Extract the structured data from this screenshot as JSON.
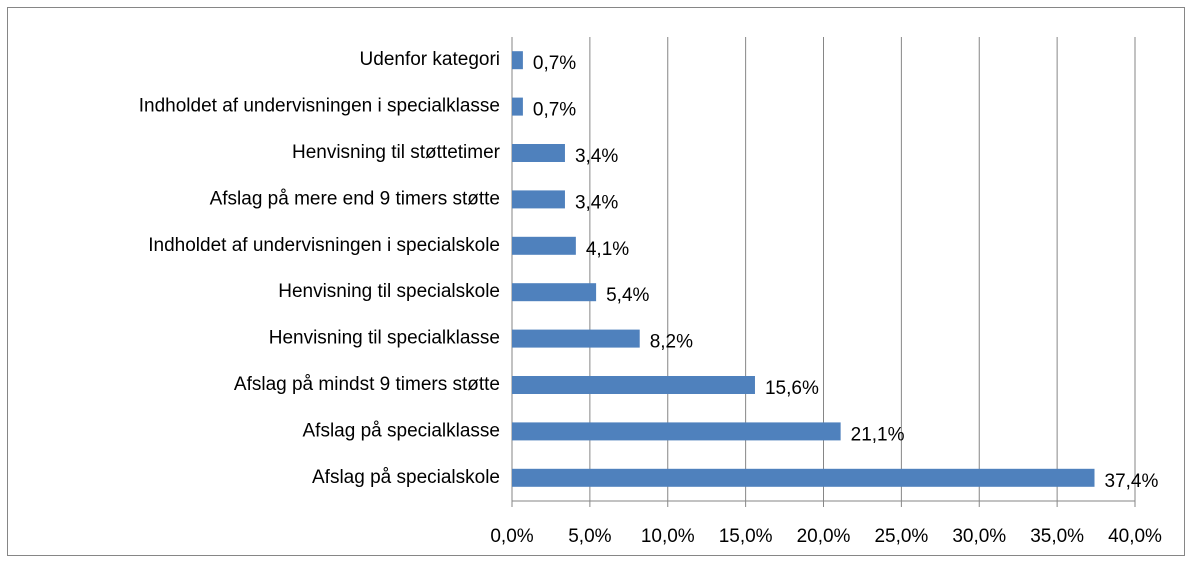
{
  "chart_data": {
    "type": "bar",
    "orientation": "horizontal",
    "categories": [
      "Afslag på specialskole",
      "Afslag på specialklasse",
      "Afslag på mindst 9 timers støtte",
      "Henvisning til specialklasse",
      "Henvisning til specialskole",
      "Indholdet af undervisningen i specialskole",
      "Afslag på mere end 9 timers støtte",
      "Henvisning til støttetimer",
      "Indholdet af undervisningen i specialklasse",
      "Udenfor kategori"
    ],
    "values": [
      37.4,
      21.1,
      15.6,
      8.2,
      5.4,
      4.1,
      3.4,
      3.4,
      0.7,
      0.7
    ],
    "value_labels": [
      "37,4%",
      "21,1%",
      "15,6%",
      "8,2%",
      "5,4%",
      "4,1%",
      "3,4%",
      "3,4%",
      "0,7%",
      "0,7%"
    ],
    "color": "#4f81bd",
    "xlim": [
      0,
      40
    ],
    "xticks": [
      {
        "value": 0,
        "label": "0,0%"
      },
      {
        "value": 5,
        "label": "5,0%"
      },
      {
        "value": 10,
        "label": "10,0%"
      },
      {
        "value": 15,
        "label": "15,0%"
      },
      {
        "value": 20,
        "label": "20,0%"
      },
      {
        "value": 25,
        "label": "25,0%"
      },
      {
        "value": 30,
        "label": "30,0%"
      },
      {
        "value": 35,
        "label": "35,0%"
      },
      {
        "value": 40,
        "label": "40,0%"
      }
    ],
    "grid": true
  }
}
